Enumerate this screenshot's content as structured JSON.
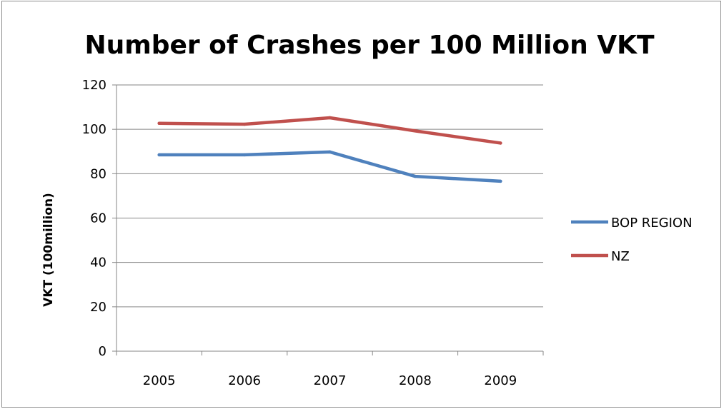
{
  "chart_data": {
    "type": "line",
    "title": "Number of Crashes per 100 Million VKT",
    "xlabel": "",
    "ylabel": "VKT (100million)",
    "categories": [
      "2005",
      "2006",
      "2007",
      "2008",
      "2009"
    ],
    "series": [
      {
        "name": "BOP REGION",
        "color": "#4f81bd",
        "values": [
          88.5,
          88.5,
          89.8,
          78.8,
          76.6
        ]
      },
      {
        "name": "NZ",
        "color": "#c0504d",
        "values": [
          102.7,
          102.3,
          105.2,
          99.3,
          93.8
        ]
      }
    ],
    "ylim": [
      0,
      120
    ],
    "yticks": [
      "0",
      "20",
      "40",
      "60",
      "80",
      "100",
      "120"
    ],
    "grid": true,
    "legend_position": "right"
  }
}
